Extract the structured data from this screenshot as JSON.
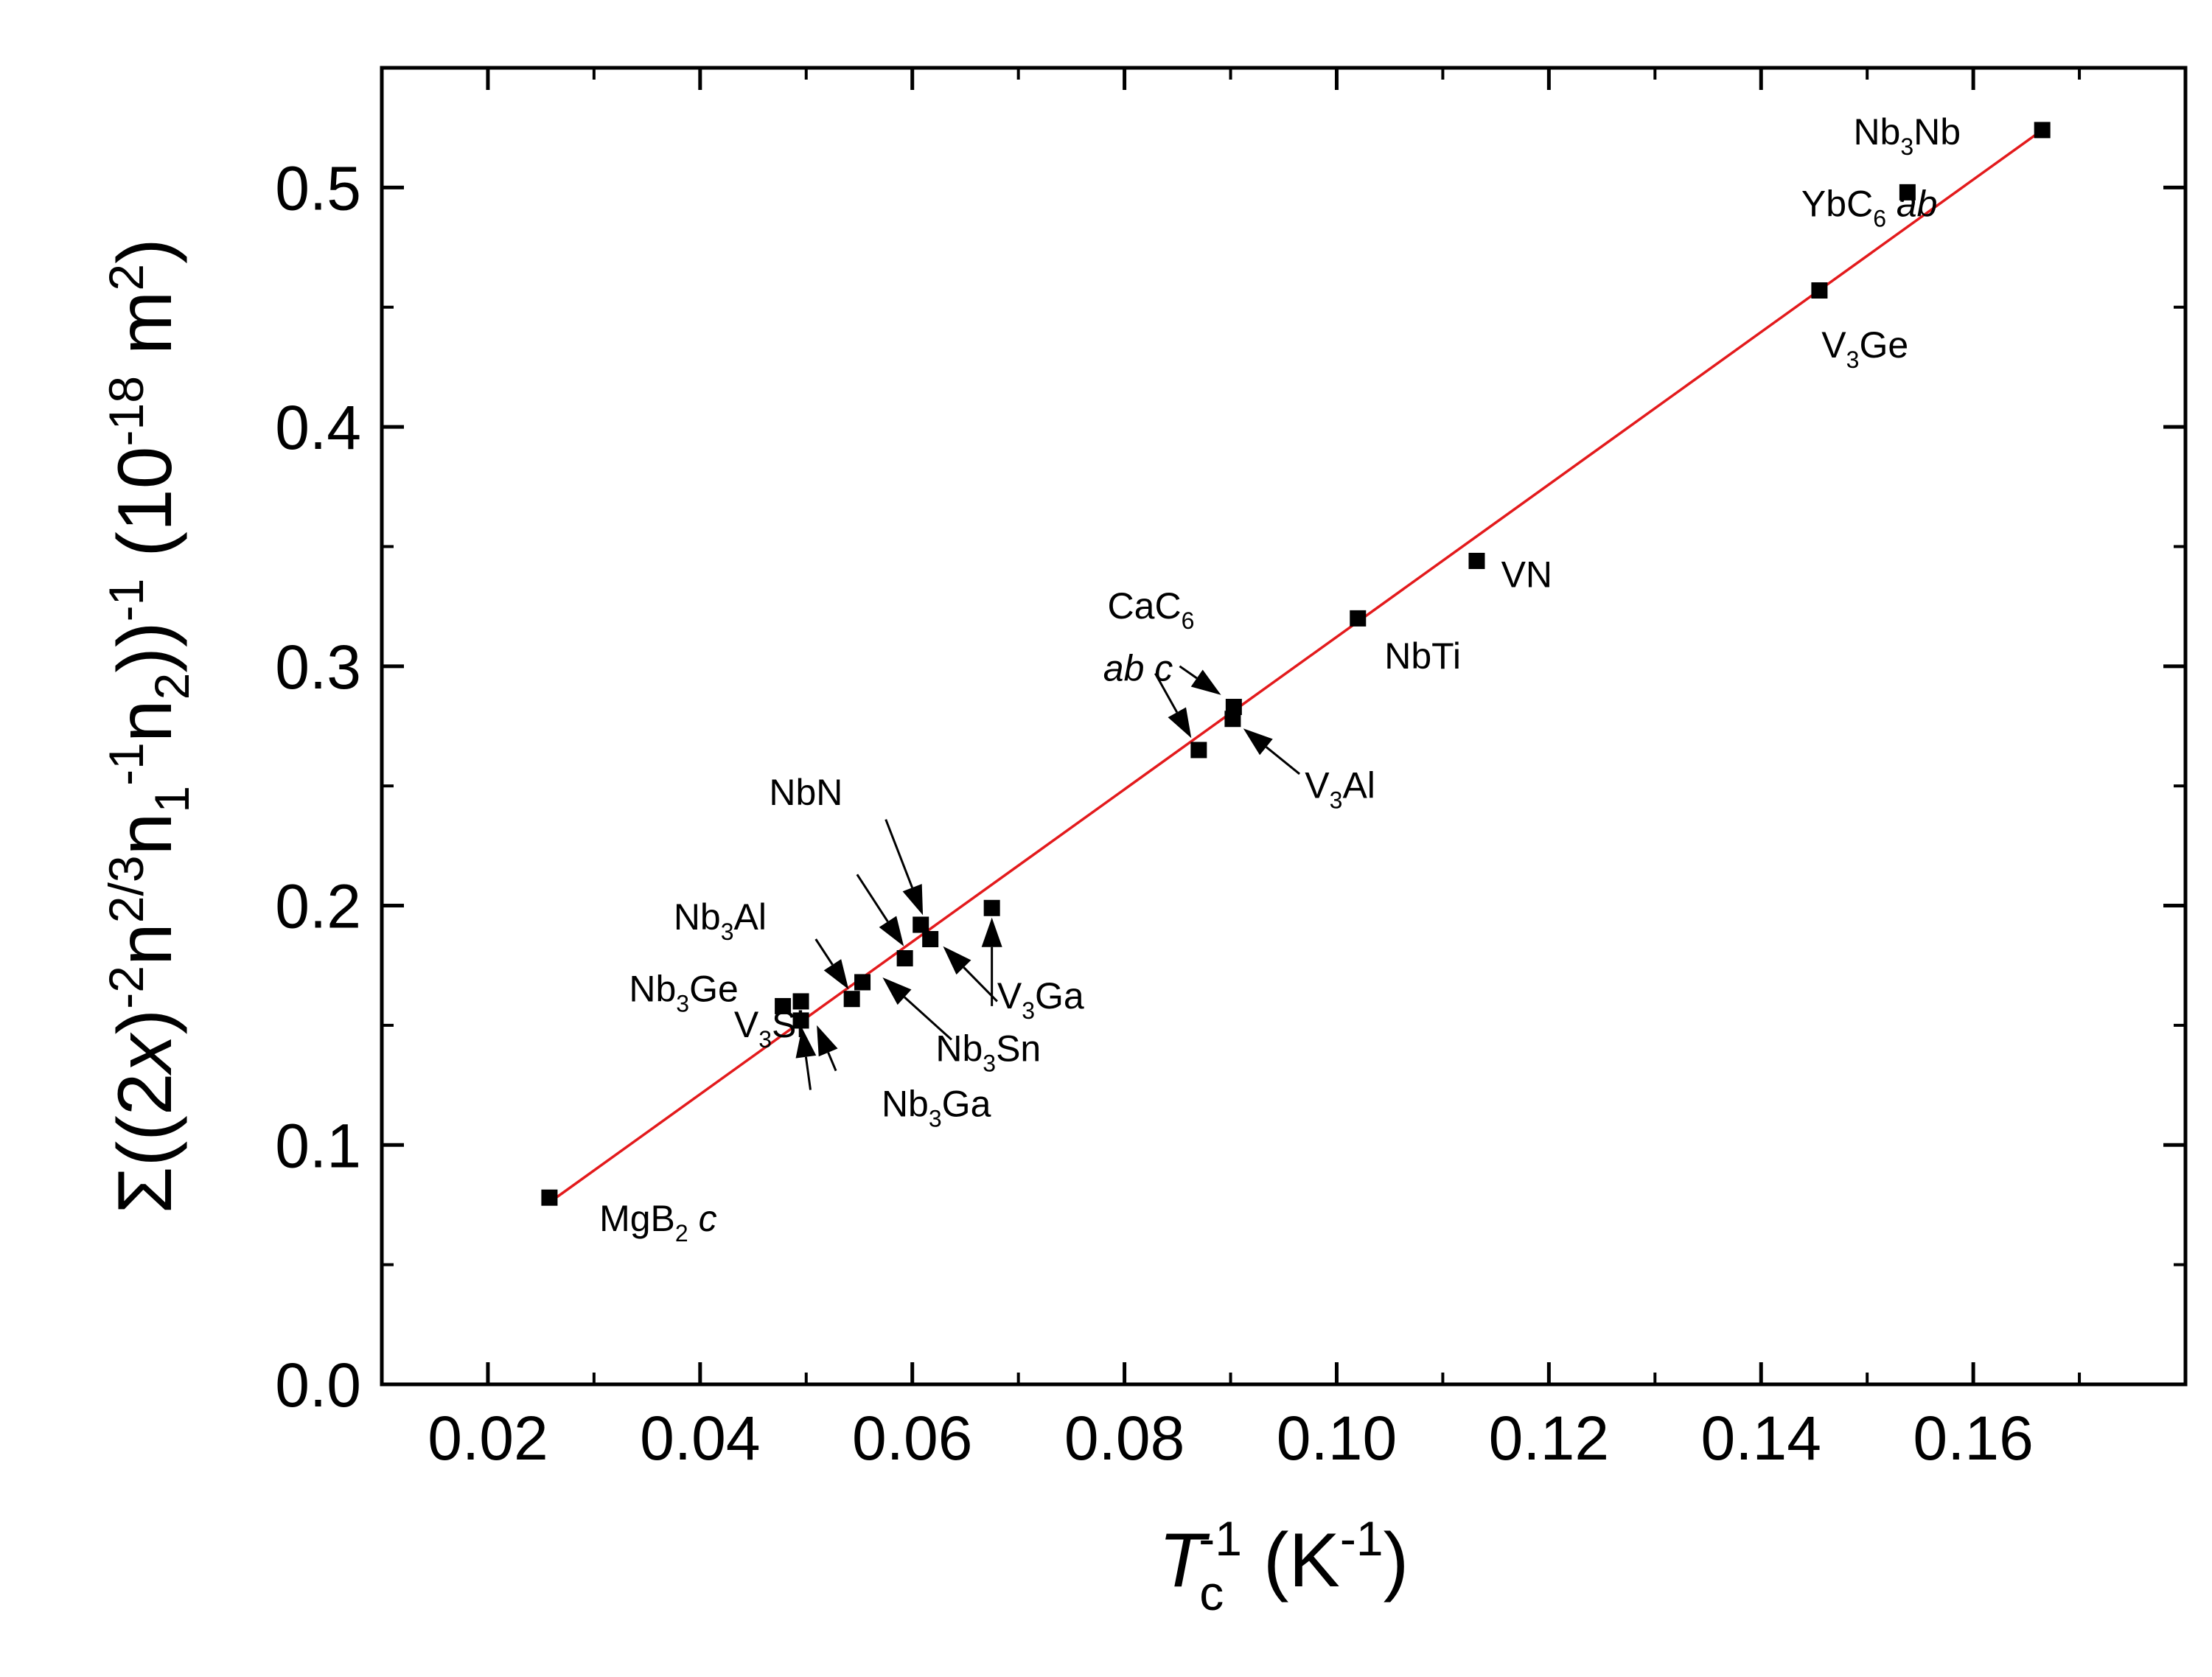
{
  "chart_data": {
    "type": "scatter",
    "xlim": [
      0.01,
      0.18
    ],
    "ylim": [
      0.0,
      0.55
    ],
    "xticks": [
      "0.02",
      "0.04",
      "0.06",
      "0.08",
      "0.10",
      "0.12",
      "0.14",
      "0.16"
    ],
    "yticks": [
      "0.0",
      "0.1",
      "0.2",
      "0.3",
      "0.4",
      "0.5"
    ],
    "xlabel": {
      "main": "T",
      "sub": "c",
      "sup1": "-1",
      "unit_open": " (K",
      "sup2": "-1",
      "unit_close": ")"
    },
    "ylabel": {
      "text1": "Σ((2",
      "italic": "x",
      "text2": ")",
      "sup1": "-2",
      "text3": "n",
      "sup2": "2/3",
      "text4": "n",
      "sub1": "1",
      "sup3": "-1",
      "text5": "n",
      "sub2": "2",
      "text6": "))",
      "sup4": "-1",
      "unit_open": "   (10",
      "sup5": "-18",
      "unit_mid": " m",
      "sup6": "2",
      "unit_close": ")"
    },
    "points": [
      {
        "x": 0.0258,
        "y": 0.078
      },
      {
        "x": 0.0478,
        "y": 0.158
      },
      {
        "x": 0.0495,
        "y": 0.16
      },
      {
        "x": 0.0495,
        "y": 0.152
      },
      {
        "x": 0.0543,
        "y": 0.161
      },
      {
        "x": 0.0553,
        "y": 0.168
      },
      {
        "x": 0.0593,
        "y": 0.178
      },
      {
        "x": 0.0608,
        "y": 0.192
      },
      {
        "x": 0.0617,
        "y": 0.186
      },
      {
        "x": 0.0675,
        "y": 0.199
      },
      {
        "x": 0.087,
        "y": 0.265
      },
      {
        "x": 0.0903,
        "y": 0.283
      },
      {
        "x": 0.0902,
        "y": 0.278
      },
      {
        "x": 0.102,
        "y": 0.32
      },
      {
        "x": 0.1132,
        "y": 0.344
      },
      {
        "x": 0.1455,
        "y": 0.457
      },
      {
        "x": 0.1538,
        "y": 0.498
      },
      {
        "x": 0.1665,
        "y": 0.524
      }
    ],
    "fit": {
      "x": [
        0.0258,
        0.1665
      ],
      "y": [
        0.076,
        0.524
      ],
      "color": "#e31a1c"
    },
    "labels": [
      {
        "parts": [
          "MgB",
          "2",
          " c"
        ],
        "italic_last": true,
        "x": 0.0305,
        "y": 0.064
      },
      {
        "parts": [
          "Nb",
          "3",
          "Ge"
        ],
        "x": 0.0333,
        "y": 0.16
      },
      {
        "parts": [
          "Nb",
          "3",
          "Al"
        ],
        "x": 0.0375,
        "y": 0.19
      },
      {
        "parts": [
          "V",
          "3",
          "Si"
        ],
        "x": 0.0432,
        "y": 0.145
      },
      {
        "parts": [
          "NbN"
        ],
        "x": 0.0465,
        "y": 0.242
      },
      {
        "parts": [
          "Nb",
          "3",
          "Sn"
        ],
        "x": 0.0622,
        "y": 0.135
      },
      {
        "parts": [
          "Nb",
          "3",
          "Ga"
        ],
        "x": 0.0571,
        "y": 0.112
      },
      {
        "parts": [
          "V",
          "3",
          "Ga"
        ],
        "x": 0.068,
        "y": 0.157
      },
      {
        "parts": [
          "CaC",
          "6"
        ],
        "x": 0.0784,
        "y": 0.32
      },
      {
        "parts": [
          "ab c"
        ],
        "italic": true,
        "x": 0.078,
        "y": 0.294
      },
      {
        "parts": [
          "V",
          "3",
          "Al"
        ],
        "x": 0.097,
        "y": 0.245
      },
      {
        "parts": [
          "NbTi"
        ],
        "x": 0.1045,
        "y": 0.299
      },
      {
        "parts": [
          "VN"
        ],
        "x": 0.1155,
        "y": 0.333
      },
      {
        "parts": [
          "V",
          "3",
          "Ge"
        ],
        "x": 0.1457,
        "y": 0.429
      },
      {
        "parts": [
          "YbC",
          "6",
          " ab"
        ],
        "italic_last": true,
        "x": 0.1438,
        "y": 0.488
      },
      {
        "parts": [
          "Nb",
          "3",
          "Nb"
        ],
        "x": 0.1487,
        "y": 0.518
      }
    ],
    "arrows": [
      {
        "x1": 0.0504,
        "y1": 0.123,
        "x2": 0.0496,
        "y2": 0.149
      },
      {
        "x1": 0.0528,
        "y1": 0.131,
        "x2": 0.051,
        "y2": 0.15
      },
      {
        "x1": 0.0509,
        "y1": 0.186,
        "x2": 0.054,
        "y2": 0.165
      },
      {
        "x1": 0.0548,
        "y1": 0.213,
        "x2": 0.0592,
        "y2": 0.183
      },
      {
        "x1": 0.0575,
        "y1": 0.236,
        "x2": 0.061,
        "y2": 0.196
      },
      {
        "x1": 0.0637,
        "y1": 0.144,
        "x2": 0.0572,
        "y2": 0.17
      },
      {
        "x1": 0.068,
        "y1": 0.16,
        "x2": 0.0629,
        "y2": 0.183
      },
      {
        "x1": 0.0675,
        "y1": 0.158,
        "x2": 0.0675,
        "y2": 0.195
      },
      {
        "x1": 0.0829,
        "y1": 0.297,
        "x2": 0.0863,
        "y2": 0.27
      },
      {
        "x1": 0.0852,
        "y1": 0.3,
        "x2": 0.0891,
        "y2": 0.288
      },
      {
        "x1": 0.0965,
        "y1": 0.255,
        "x2": 0.0912,
        "y2": 0.274
      }
    ]
  }
}
